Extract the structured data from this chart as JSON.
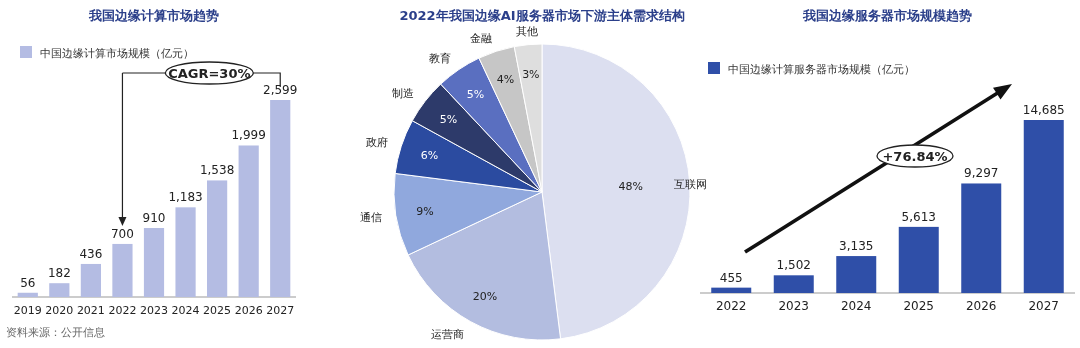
{
  "chart_data": [
    {
      "type": "bar",
      "title": "我国边缘计算市场趋势",
      "categories": [
        "2019",
        "2020",
        "2021",
        "2022",
        "2023",
        "2024",
        "2025",
        "2026",
        "2027"
      ],
      "series": [
        {
          "name": "中国边缘计算市场规模（亿元）",
          "color": "#b4bce3",
          "values": [
            56,
            182,
            436,
            700,
            910,
            1183,
            1538,
            1999,
            2599
          ],
          "value_labels": [
            "56",
            "182",
            "436",
            "700",
            "910",
            "1,183",
            "1,538",
            "1,999",
            "2,599"
          ]
        }
      ],
      "legend": "top left",
      "annotations": [
        "CAGR=30%",
        "资料来源：公开信息"
      ]
    },
    {
      "type": "pie",
      "title": "2022年我国边缘AI服务器市场下游主体需求结构",
      "categories": [
        "互联网",
        "运营商",
        "通信",
        "政府",
        "制造",
        "教育",
        "金融",
        "其他"
      ],
      "values": [
        48,
        20,
        9,
        6,
        5,
        5,
        4,
        3
      ],
      "value_labels": [
        "48%",
        "20%",
        "9%",
        "6%",
        "5%",
        "5%",
        "4%",
        "3%"
      ],
      "colors": [
        "#dcdff0",
        "#b3bde0",
        "#90a8dd",
        "#2b4ba0",
        "#2d3a6a",
        "#5a6fc0",
        "#c6c6c6",
        "#dedede"
      ]
    },
    {
      "type": "bar",
      "title": "我国边缘服务器市场规模趋势",
      "categories": [
        "2022",
        "2023",
        "2024",
        "2025",
        "2026",
        "2027"
      ],
      "series": [
        {
          "name": "中国边缘计算服务器市场规模（亿元）",
          "color": "#2f4fa8",
          "values": [
            455,
            1502,
            3135,
            5613,
            9297,
            14685
          ],
          "value_labels": [
            "455",
            "1,502",
            "3,135",
            "5,613",
            "9,297",
            "14,685"
          ]
        }
      ],
      "legend": "top left",
      "annotations": [
        "+76.84%"
      ]
    }
  ]
}
